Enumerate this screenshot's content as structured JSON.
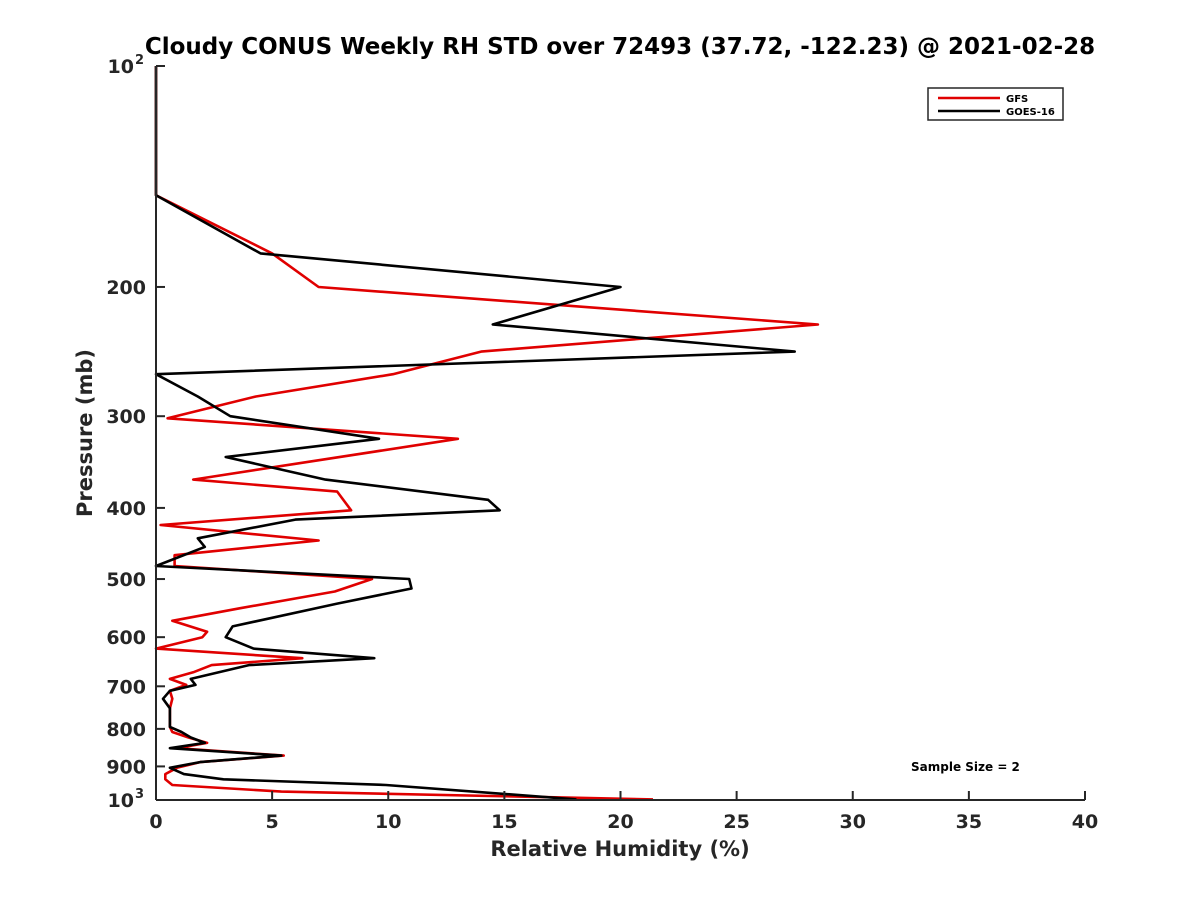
{
  "chart_data": {
    "type": "line",
    "title": "Cloudy CONUS Weekly RH STD over 72493 (37.72, -122.23) @ 2021-02-28",
    "xlabel": "Relative Humidity (%)",
    "ylabel": "Pressure (mb)",
    "xlim": [
      0,
      40
    ],
    "ylim": [
      100,
      1000
    ],
    "y_scale": "log",
    "y_reversed": true,
    "grid": false,
    "legend_position": "top-right",
    "x_ticks": [
      "0",
      "5",
      "10",
      "15",
      "20",
      "25",
      "30",
      "35",
      "40"
    ],
    "y_ticks": [
      {
        "value": 100,
        "label": "10",
        "sup": "2"
      },
      {
        "value": 200,
        "label": "200"
      },
      {
        "value": 300,
        "label": "300"
      },
      {
        "value": 400,
        "label": "400"
      },
      {
        "value": 500,
        "label": "500"
      },
      {
        "value": 600,
        "label": "600"
      },
      {
        "value": 700,
        "label": "700"
      },
      {
        "value": 800,
        "label": "800"
      },
      {
        "value": 900,
        "label": "900"
      },
      {
        "value": 1000,
        "label": "10",
        "sup": "3"
      }
    ],
    "annotation": "Sample Size = 2",
    "series": [
      {
        "name": "GFS",
        "color": "#e00000",
        "points": [
          [
            0,
            100
          ],
          [
            0,
            150
          ],
          [
            5,
            180
          ],
          [
            7,
            200
          ],
          [
            28.5,
            225
          ],
          [
            14,
            245
          ],
          [
            10.2,
            263
          ],
          [
            4.3,
            282
          ],
          [
            0.5,
            302
          ],
          [
            13,
            322
          ],
          [
            1.6,
            366
          ],
          [
            7.8,
            380
          ],
          [
            8.4,
            403
          ],
          [
            0.2,
            422
          ],
          [
            7,
            443
          ],
          [
            0.8,
            464
          ],
          [
            0.8,
            480
          ],
          [
            9.3,
            500
          ],
          [
            7.7,
            520
          ],
          [
            3.6,
            548
          ],
          [
            0.7,
            570
          ],
          [
            2.2,
            590
          ],
          [
            2,
            600
          ],
          [
            0,
            622
          ],
          [
            6.3,
            641
          ],
          [
            2.4,
            655
          ],
          [
            1.6,
            670
          ],
          [
            0.6,
            684
          ],
          [
            1.3,
            697
          ],
          [
            0.6,
            710
          ],
          [
            0.7,
            728
          ],
          [
            0.6,
            750
          ],
          [
            0.6,
            770
          ],
          [
            0.6,
            795
          ],
          [
            0.7,
            808
          ],
          [
            1.4,
            822
          ],
          [
            2.2,
            836
          ],
          [
            0.9,
            850
          ],
          [
            5.5,
            870
          ],
          [
            1.9,
            888
          ],
          [
            0.9,
            904
          ],
          [
            0.4,
            922
          ],
          [
            0.4,
            937
          ],
          [
            0.7,
            954
          ],
          [
            5.4,
            974
          ],
          [
            21.4,
            998
          ]
        ]
      },
      {
        "name": "GOES-16",
        "color": "#000000",
        "points": [
          [
            0,
            100
          ],
          [
            0,
            150
          ],
          [
            4.5,
            180
          ],
          [
            20,
            200
          ],
          [
            14.5,
            225
          ],
          [
            27.5,
            245
          ],
          [
            0,
            263
          ],
          [
            1.8,
            282
          ],
          [
            3.2,
            300
          ],
          [
            9.6,
            322
          ],
          [
            3,
            341
          ],
          [
            7.3,
            366
          ],
          [
            14.3,
            390
          ],
          [
            14.8,
            403
          ],
          [
            6,
            415
          ],
          [
            1.8,
            440
          ],
          [
            2.1,
            452
          ],
          [
            0,
            480
          ],
          [
            10.9,
            500
          ],
          [
            11,
            515
          ],
          [
            7.8,
            540
          ],
          [
            3.3,
            580
          ],
          [
            3,
            600
          ],
          [
            4.2,
            622
          ],
          [
            9.4,
            641
          ],
          [
            4,
            655
          ],
          [
            1.5,
            684
          ],
          [
            1.7,
            697
          ],
          [
            0.6,
            710
          ],
          [
            0.3,
            728
          ],
          [
            0.6,
            750
          ],
          [
            0.6,
            770
          ],
          [
            0.6,
            795
          ],
          [
            1.1,
            808
          ],
          [
            1.5,
            822
          ],
          [
            2.1,
            836
          ],
          [
            0.6,
            850
          ],
          [
            5.4,
            870
          ],
          [
            1.9,
            888
          ],
          [
            0.6,
            904
          ],
          [
            1.2,
            922
          ],
          [
            2.9,
            937
          ],
          [
            9.9,
            954
          ],
          [
            18.1,
            998
          ]
        ]
      }
    ]
  }
}
